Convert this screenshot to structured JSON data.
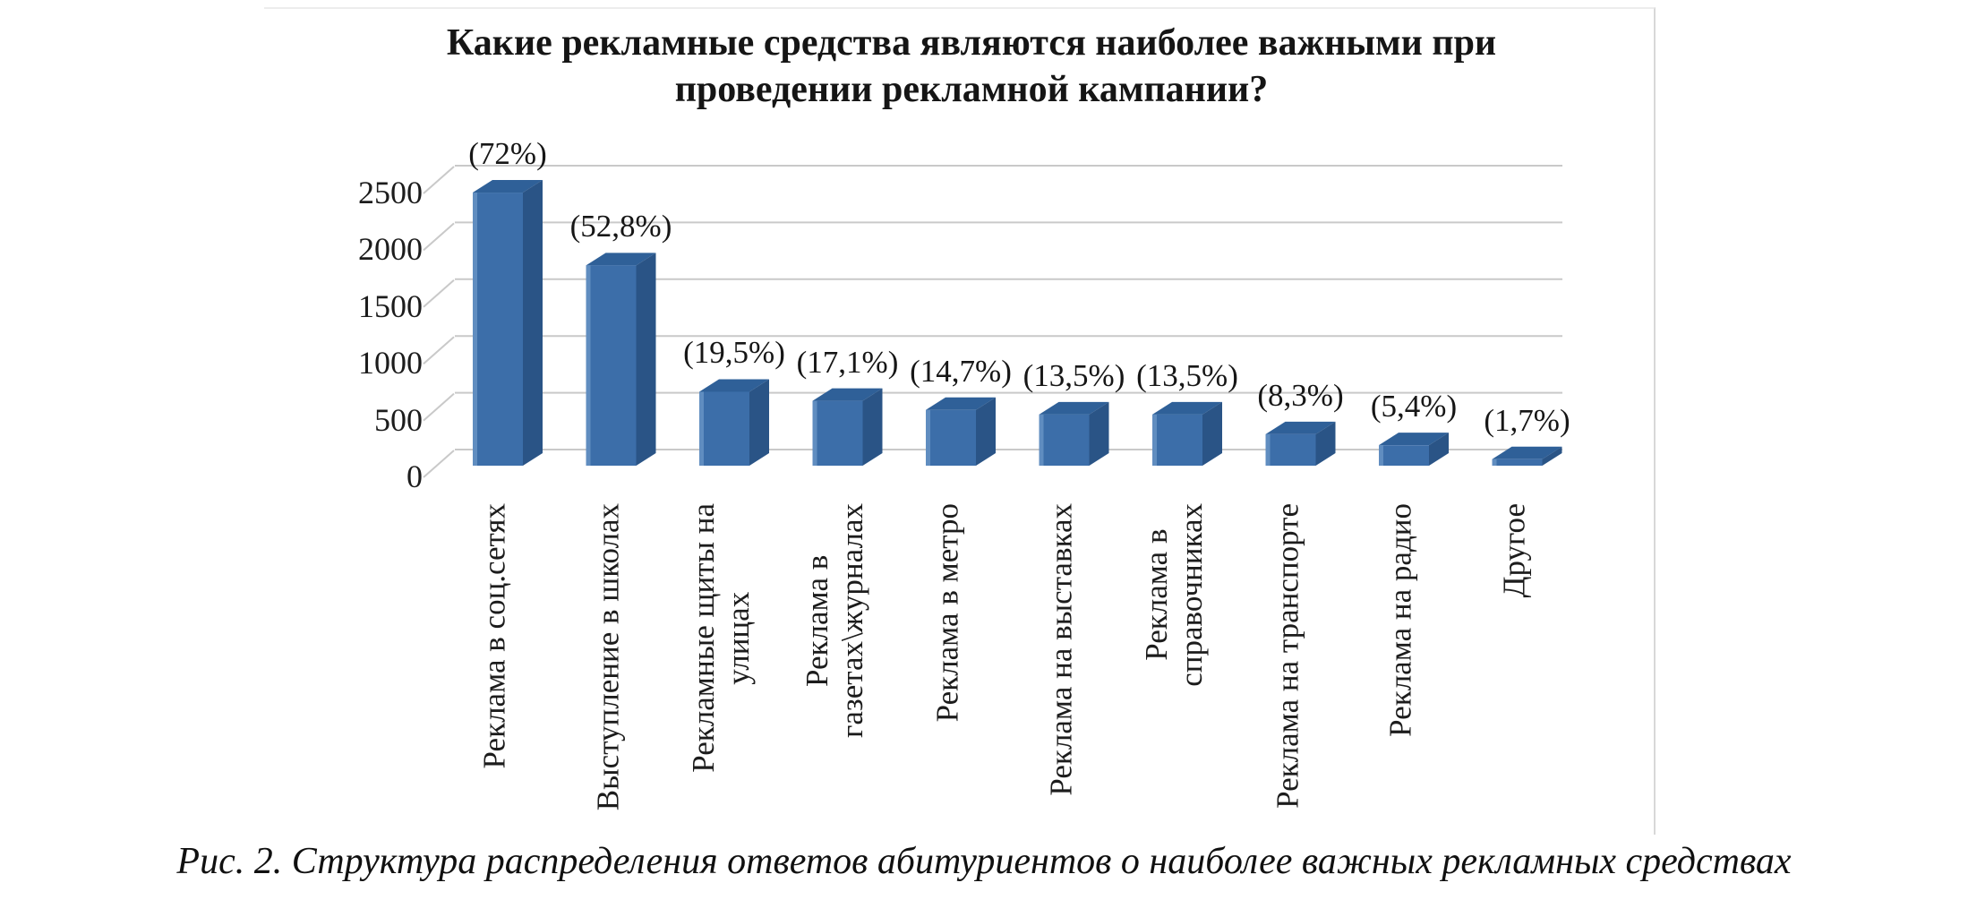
{
  "chart_data": {
    "type": "bar",
    "style": "3d-column",
    "title_lines": [
      "Какие рекламные средства являются наиболее важными при",
      "проведении рекламной кампании?"
    ],
    "categories": [
      [
        "Реклама в соц.сетях"
      ],
      [
        "Выступление в школах"
      ],
      [
        "Рекламные щиты на",
        "улицах"
      ],
      [
        "Реклама в",
        "газетах\\журналах"
      ],
      [
        "Реклама в метро"
      ],
      [
        "Реклама на выставках"
      ],
      [
        "Реклама в",
        "справочниках"
      ],
      [
        "Реклама на транспорте"
      ],
      [
        "Реклама на радио"
      ],
      [
        "Другое"
      ]
    ],
    "percent_labels": [
      "(72%)",
      "(52,8%)",
      "(19,5%)",
      "(17,1%)",
      "(14,7%)",
      "(13,5%)",
      "(13,5%)",
      "(8,3%)",
      "(5,4%)",
      "(1,7%)"
    ],
    "percents": [
      72,
      52.8,
      19.5,
      17.1,
      14.7,
      13.5,
      13.5,
      8.3,
      5.4,
      1.7
    ],
    "values_estimated": [
      2405,
      1764,
      651,
      571,
      491,
      451,
      451,
      277,
      180,
      57
    ],
    "y_tick_labels": [
      "2500",
      "2000",
      "1500",
      "1000",
      "500",
      "0"
    ],
    "ylim": [
      0,
      2500
    ],
    "grid": true,
    "legend": false,
    "colors": {
      "bar_front": "#3C6EA9",
      "bar_top": "#2F6098",
      "bar_side": "#2A5486",
      "bar_highlight": "#6C98C8",
      "gridline": "#c9c9c9",
      "text": "#1c1c1c"
    }
  },
  "caption": "Рис. 2. Структура распределения ответов абитуриентов о наиболее важных рекламных средствах"
}
